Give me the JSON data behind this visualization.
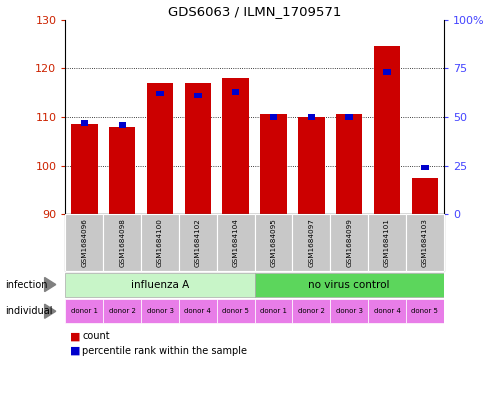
{
  "title": "GDS6063 / ILMN_1709571",
  "samples": [
    "GSM1684096",
    "GSM1684098",
    "GSM1684100",
    "GSM1684102",
    "GSM1684104",
    "GSM1684095",
    "GSM1684097",
    "GSM1684099",
    "GSM1684101",
    "GSM1684103"
  ],
  "count_values": [
    108.5,
    108.0,
    117.0,
    117.0,
    118.0,
    110.5,
    110.0,
    110.5,
    124.5,
    97.5
  ],
  "percentile_values": [
    47,
    46,
    62,
    61,
    63,
    50,
    50,
    50,
    73,
    24
  ],
  "ylim_left": [
    90,
    130
  ],
  "ylim_right": [
    0,
    100
  ],
  "yticks_left": [
    90,
    100,
    110,
    120,
    130
  ],
  "yticks_right": [
    0,
    25,
    50,
    75,
    100
  ],
  "infection_labels": [
    "influenza A",
    "no virus control"
  ],
  "infection_color_light": "#c8f5c8",
  "infection_color_dark": "#5cd65c",
  "individual_color": "#e87de8",
  "sample_bg_color": "#c8c8c8",
  "bar_color_red": "#cc0000",
  "bar_color_blue": "#0000cc",
  "left_label_color": "#cc2200",
  "right_label_color": "#4444ff",
  "bg_color": "#ffffff",
  "individual_labels": [
    "donor 1",
    "donor 2",
    "donor 3",
    "donor 4",
    "donor 5",
    "donor 1",
    "donor 2",
    "donor 3",
    "donor 4",
    "donor 5"
  ]
}
